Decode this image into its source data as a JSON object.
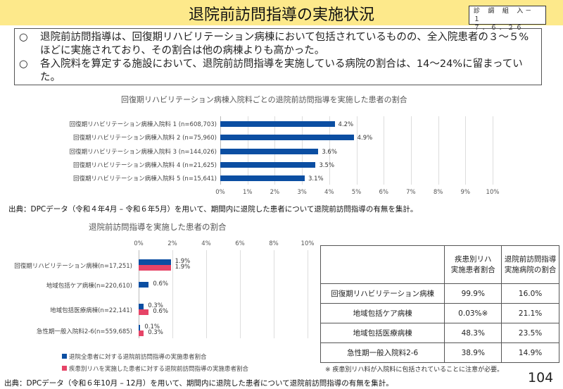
{
  "header": {
    "title": "退院前訪問指導の実施状況",
    "badge_line1": "診 調 組  入－１",
    "badge_line2": "７．６．２６"
  },
  "summary": {
    "bullet": "○",
    "items": [
      "退院前訪問指導は、回復期リハビリテーション病棟において包括されているものの、全入院患者の３～５%ほどに実施されており、その割合は他の病棟よりも高かった。",
      "各入院料を算定する施設において、退院前訪問指導を実施している病院の割合は、14～24%に留まっていた。"
    ]
  },
  "chart_data": [
    {
      "type": "bar",
      "orientation": "horizontal",
      "title": "回復期リハビリテーション病棟入院料ごとの退院前訪問指導を実施した患者の割合",
      "categories": [
        "回復期リハビリテーション病棟入院料 1 (n=608,703)",
        "回復期リハビリテーション病棟入院料 2 (n=75,960)",
        "回復期リハビリテーション病棟入院料 3 (n=144,026)",
        "回復期リハビリテーション病棟入院料 4 (n=21,625)",
        "回復期リハビリテーション病棟入院料 5 (n=15,641)"
      ],
      "values": [
        4.2,
        4.9,
        3.6,
        3.5,
        3.1
      ],
      "labels": [
        "4.2%",
        "4.9%",
        "3.6%",
        "3.5%",
        "3.1%"
      ],
      "xlim": [
        0,
        10
      ],
      "ticks": [
        "0%",
        "1%",
        "2%",
        "3%",
        "4%",
        "5%",
        "6%",
        "7%",
        "8%",
        "9%",
        "10%"
      ],
      "color": "#0b4ea2",
      "grid": true
    },
    {
      "type": "bar",
      "orientation": "horizontal",
      "title": "退院前訪問指導を実施した患者の割合",
      "categories": [
        "回復期リハビリテーション病棟(n=17,251)",
        "地域包括ケア病棟(n=220,610)",
        "地域包括医療病棟(n=22,141)",
        "急性期一般入院料2-6(n=559,685)"
      ],
      "series": [
        {
          "name": "退院全患者に対する退院前訪問指導の実施患者割合",
          "values": [
            1.9,
            0.6,
            0.3,
            0.1
          ],
          "labels": [
            "1.9%",
            "0.6%",
            "0.3%",
            "0.1%"
          ],
          "color": "#0b4ea2"
        },
        {
          "name": "疾患別リハを実施した患者に対する退院前訪問指導の実施患者割合",
          "values": [
            1.9,
            null,
            0.6,
            0.3
          ],
          "labels": [
            "1.9%",
            null,
            "0.6%",
            "0.3%"
          ],
          "color": "#e64467"
        }
      ],
      "xlim": [
        0,
        10
      ],
      "ticks": [
        "0%",
        "2%",
        "4%",
        "6%",
        "8%",
        "10%"
      ],
      "legend": "bottom",
      "grid": true
    }
  ],
  "source1": "出典：DPCデータ（令和４年4月 – 令和６年5月）を用いて、期間内に退院した患者について退院前訪問指導の有無を集計。",
  "source2": "出典：DPCデータ（令和６年10月 – 12月）を用いて、期間内に退院した患者について退院前訪問指導の有無を集計。",
  "table": {
    "headers": [
      "",
      "疾患別リハ\n実施患者割合",
      "退院前訪問指導\n実施病院の割合"
    ],
    "rows": [
      [
        "回復期リハビリテーション病棟",
        "99.9%",
        "16.0%"
      ],
      [
        "地域包括ケア病棟",
        "0.03%※",
        "21.1%"
      ],
      [
        "地域包括医療病棟",
        "48.3%",
        "23.5%"
      ],
      [
        "急性期一般入院料2-6",
        "38.9%",
        "14.9%"
      ]
    ]
  },
  "note": "※ 疾患別リハ料が入院料に包括されていることに注意が必要。",
  "page_number": "104"
}
